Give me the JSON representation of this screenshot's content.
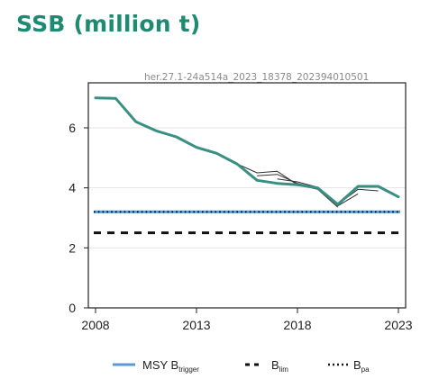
{
  "title": "SSB (million t)",
  "code": "her.27.1-24a514a_2023_18378_202394010501",
  "colors": {
    "title": "#1f8a72",
    "ssb": "#3a8f83",
    "retro": "#333333",
    "msy": "#5b9bd5",
    "blim": "#111111",
    "bpa": "#1a1a1a"
  },
  "chart_data": {
    "type": "line",
    "title": "SSB (million t)",
    "xlim": [
      2008,
      2023
    ],
    "ylim": [
      0,
      7.5
    ],
    "x_ticks": [
      2008,
      2013,
      2018,
      2023
    ],
    "y_ticks": [
      0,
      2,
      4,
      6
    ],
    "grid": "horizontal",
    "legend_position": "bottom",
    "series": [
      {
        "x": [
          2008,
          2009,
          2010,
          2011,
          2012,
          2013,
          2014,
          2015,
          2016,
          2017,
          2018,
          2019,
          2020,
          2021,
          2022,
          2023
        ],
        "values": [
          7.0,
          6.98,
          6.2,
          5.9,
          5.7,
          5.35,
          5.15,
          4.8,
          4.25,
          4.15,
          4.1,
          4.0,
          3.45,
          4.05,
          4.05,
          3.7
        ]
      },
      {
        "x": [
          2015,
          2016,
          2017,
          2018,
          2019,
          2020
        ],
        "values": [
          4.8,
          4.5,
          4.55,
          4.1,
          3.95,
          3.35
        ]
      },
      {
        "x": [
          2016,
          2017,
          2018,
          2019,
          2020,
          2021
        ],
        "values": [
          4.4,
          4.45,
          4.15,
          4.0,
          3.4,
          3.8
        ]
      },
      {
        "x": [
          2017,
          2018,
          2019,
          2020,
          2021,
          2022
        ],
        "values": [
          4.3,
          4.2,
          4.02,
          3.45,
          3.95,
          3.9
        ]
      }
    ],
    "reference_lines": [
      {
        "name": "MSY B",
        "sub": "trigger",
        "value": 3.2,
        "style": "dotted"
      },
      {
        "name": "B",
        "sub": "lim",
        "value": 2.5,
        "style": "dashed"
      },
      {
        "name": "B",
        "sub": "pa",
        "value": 3.2,
        "style": "dotted"
      }
    ]
  }
}
